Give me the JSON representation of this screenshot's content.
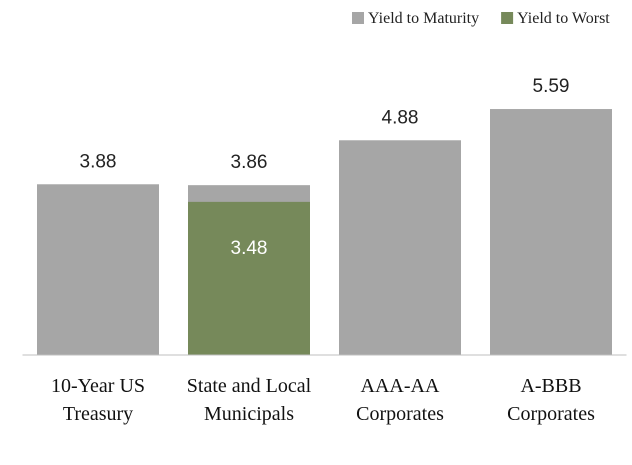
{
  "chart_data": {
    "type": "bar",
    "categories": [
      "10-Year US Treasury",
      "State and Local Municipals",
      "AAA-AA Corporates",
      "A-BBB Corporates"
    ],
    "series": [
      {
        "name": "Yield to Maturity",
        "color": "#a6a6a6",
        "values": [
          3.88,
          3.86,
          4.88,
          5.59
        ]
      },
      {
        "name": "Yield to Worst",
        "color": "#76895a",
        "values": [
          null,
          3.48,
          null,
          null
        ]
      }
    ],
    "ylim": [
      0,
      6
    ],
    "legend": "top-right"
  }
}
